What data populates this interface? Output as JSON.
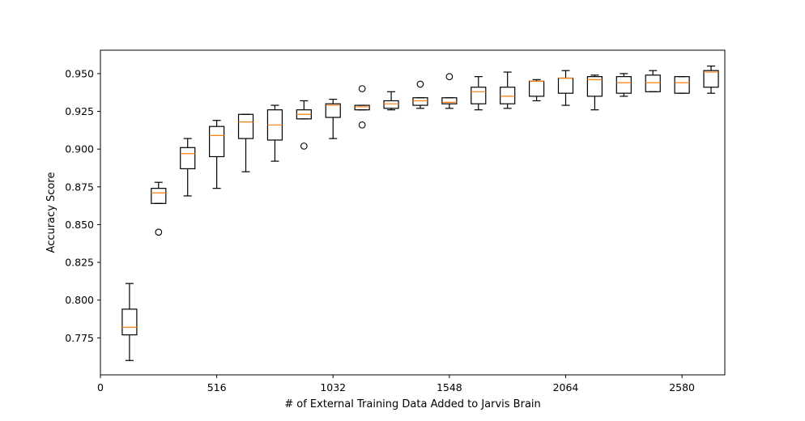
{
  "chart_data": {
    "type": "boxplot",
    "title": "",
    "xlabel": "# of External Training Data Added to Jarvis Brain",
    "ylabel": "Accuracy Score",
    "xlim": [
      0,
      2770
    ],
    "ylim": [
      0.7505,
      0.9655
    ],
    "xticks": [
      0,
      516,
      1032,
      1548,
      2064,
      2580
    ],
    "yticks": [
      0.775,
      0.8,
      0.825,
      0.85,
      0.875,
      0.9,
      0.925,
      0.95
    ],
    "ytick_format_decimals": 3,
    "grid": false,
    "legend": "none",
    "colors": {
      "box": "#000000",
      "median": "#ff7f0e",
      "axes": "#000000",
      "background": "#ffffff"
    },
    "boxes": [
      {
        "x": 129,
        "whislo": 0.76,
        "q1": 0.777,
        "med": 0.782,
        "q3": 0.794,
        "whishi": 0.811,
        "fliers": []
      },
      {
        "x": 258,
        "whislo": 0.864,
        "q1": 0.864,
        "med": 0.871,
        "q3": 0.874,
        "whishi": 0.878,
        "fliers": [
          0.845
        ]
      },
      {
        "x": 387,
        "whislo": 0.869,
        "q1": 0.887,
        "med": 0.897,
        "q3": 0.901,
        "whishi": 0.907,
        "fliers": []
      },
      {
        "x": 516,
        "whislo": 0.874,
        "q1": 0.895,
        "med": 0.909,
        "q3": 0.915,
        "whishi": 0.919,
        "fliers": []
      },
      {
        "x": 645,
        "whislo": 0.885,
        "q1": 0.907,
        "med": 0.918,
        "q3": 0.923,
        "whishi": 0.923,
        "fliers": []
      },
      {
        "x": 774,
        "whislo": 0.892,
        "q1": 0.906,
        "med": 0.916,
        "q3": 0.926,
        "whishi": 0.929,
        "fliers": []
      },
      {
        "x": 903,
        "whislo": 0.92,
        "q1": 0.92,
        "med": 0.923,
        "q3": 0.926,
        "whishi": 0.932,
        "fliers": [
          0.902
        ]
      },
      {
        "x": 1032,
        "whislo": 0.907,
        "q1": 0.921,
        "med": 0.929,
        "q3": 0.93,
        "whishi": 0.933,
        "fliers": []
      },
      {
        "x": 1161,
        "whislo": 0.926,
        "q1": 0.926,
        "med": 0.928,
        "q3": 0.929,
        "whishi": 0.929,
        "fliers": [
          0.94,
          0.916
        ]
      },
      {
        "x": 1290,
        "whislo": 0.926,
        "q1": 0.927,
        "med": 0.93,
        "q3": 0.932,
        "whishi": 0.938,
        "fliers": []
      },
      {
        "x": 1419,
        "whislo": 0.927,
        "q1": 0.929,
        "med": 0.932,
        "q3": 0.934,
        "whishi": 0.934,
        "fliers": [
          0.943
        ]
      },
      {
        "x": 1548,
        "whislo": 0.927,
        "q1": 0.93,
        "med": 0.931,
        "q3": 0.934,
        "whishi": 0.934,
        "fliers": [
          0.948
        ]
      },
      {
        "x": 1677,
        "whislo": 0.926,
        "q1": 0.93,
        "med": 0.938,
        "q3": 0.941,
        "whishi": 0.948,
        "fliers": []
      },
      {
        "x": 1806,
        "whislo": 0.927,
        "q1": 0.93,
        "med": 0.935,
        "q3": 0.941,
        "whishi": 0.951,
        "fliers": []
      },
      {
        "x": 1935,
        "whislo": 0.932,
        "q1": 0.935,
        "med": 0.945,
        "q3": 0.945,
        "whishi": 0.946,
        "fliers": []
      },
      {
        "x": 2064,
        "whislo": 0.929,
        "q1": 0.937,
        "med": 0.947,
        "q3": 0.947,
        "whishi": 0.952,
        "fliers": []
      },
      {
        "x": 2193,
        "whislo": 0.926,
        "q1": 0.935,
        "med": 0.946,
        "q3": 0.948,
        "whishi": 0.949,
        "fliers": []
      },
      {
        "x": 2322,
        "whislo": 0.935,
        "q1": 0.937,
        "med": 0.944,
        "q3": 0.948,
        "whishi": 0.95,
        "fliers": []
      },
      {
        "x": 2451,
        "whislo": 0.938,
        "q1": 0.938,
        "med": 0.944,
        "q3": 0.949,
        "whishi": 0.952,
        "fliers": []
      },
      {
        "x": 2580,
        "whislo": 0.937,
        "q1": 0.937,
        "med": 0.944,
        "q3": 0.948,
        "whishi": 0.948,
        "fliers": []
      },
      {
        "x": 2709,
        "whislo": 0.937,
        "q1": 0.941,
        "med": 0.951,
        "q3": 0.952,
        "whishi": 0.955,
        "fliers": []
      }
    ]
  }
}
